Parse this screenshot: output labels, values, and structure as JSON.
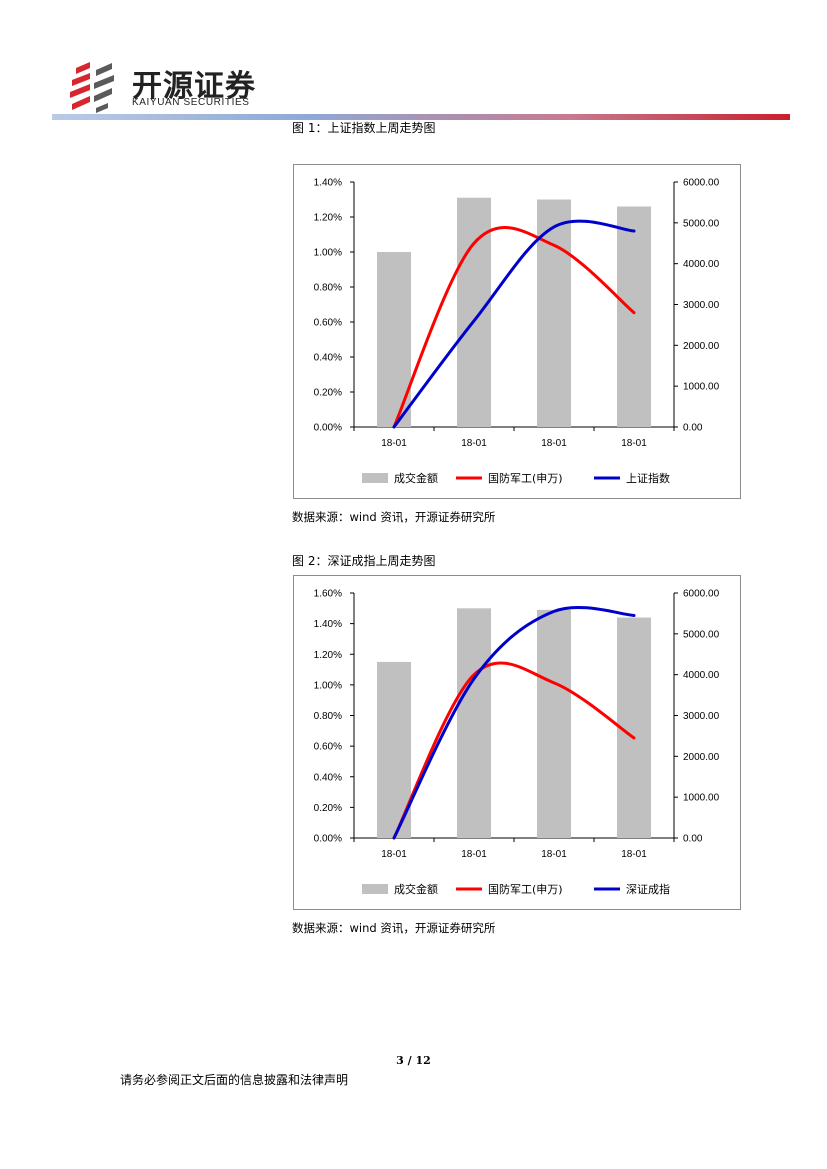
{
  "header": {
    "brand_cn": "开源证券",
    "brand_en": "KAIYUAN SECURITIES",
    "colors": {
      "logo_red": "#d7262e",
      "logo_grey": "#555555"
    }
  },
  "figures": [
    {
      "caption": "图 1：上证指数上周走势图",
      "source": "数据来源：wind 资讯，开源证券研究所"
    },
    {
      "caption": "图 2：深证成指上周走势图",
      "source": "数据来源：wind 资讯，开源证券研究所"
    }
  ],
  "footer": {
    "page": "3 / 12",
    "disclaimer": "请务必参阅正文后面的信息披露和法律声明"
  },
  "chart_data": [
    {
      "type": "bar",
      "categories": [
        "18-01",
        "18-01",
        "18-01",
        "18-01"
      ],
      "y_left_ticks": [
        "0.00%",
        "0.20%",
        "0.40%",
        "0.60%",
        "0.80%",
        "1.00%",
        "1.20%",
        "1.40%"
      ],
      "y_right_ticks": [
        "0.00",
        "1000.00",
        "2000.00",
        "3000.00",
        "4000.00",
        "5000.00",
        "6000.00"
      ],
      "ylim_left": [
        0,
        1.4
      ],
      "ylim_right": [
        0,
        6000
      ],
      "grid": false,
      "legend_position": "bottom",
      "series": [
        {
          "name": "成交金额",
          "kind": "bar",
          "axis": "left",
          "color": "#c0c0c0",
          "values": [
            1.0,
            1.31,
            1.3,
            1.26
          ]
        },
        {
          "name": "国防军工(申万)",
          "kind": "line",
          "axis": "right",
          "color": "#ff0000",
          "values": [
            0,
            4500,
            4450,
            2800
          ]
        },
        {
          "name": "上证指数",
          "kind": "line",
          "axis": "right",
          "color": "#0000cc",
          "values": [
            0,
            2600,
            4900,
            4800
          ]
        }
      ]
    },
    {
      "type": "bar",
      "categories": [
        "18-01",
        "18-01",
        "18-01",
        "18-01"
      ],
      "y_left_ticks": [
        "0.00%",
        "0.20%",
        "0.40%",
        "0.60%",
        "0.80%",
        "1.00%",
        "1.20%",
        "1.40%",
        "1.60%"
      ],
      "y_right_ticks": [
        "0.00",
        "1000.00",
        "2000.00",
        "3000.00",
        "4000.00",
        "5000.00",
        "6000.00"
      ],
      "ylim_left": [
        0,
        1.6
      ],
      "ylim_right": [
        0,
        6000
      ],
      "grid": false,
      "legend_position": "bottom",
      "series": [
        {
          "name": "成交金额",
          "kind": "bar",
          "axis": "left",
          "color": "#c0c0c0",
          "values": [
            1.15,
            1.5,
            1.49,
            1.44
          ]
        },
        {
          "name": "国防军工(申万)",
          "kind": "line",
          "axis": "right",
          "color": "#ff0000",
          "values": [
            0,
            4000,
            3800,
            2450
          ]
        },
        {
          "name": "深证成指",
          "kind": "line",
          "axis": "right",
          "color": "#0000cc",
          "values": [
            0,
            3900,
            5550,
            5450
          ]
        }
      ]
    }
  ]
}
